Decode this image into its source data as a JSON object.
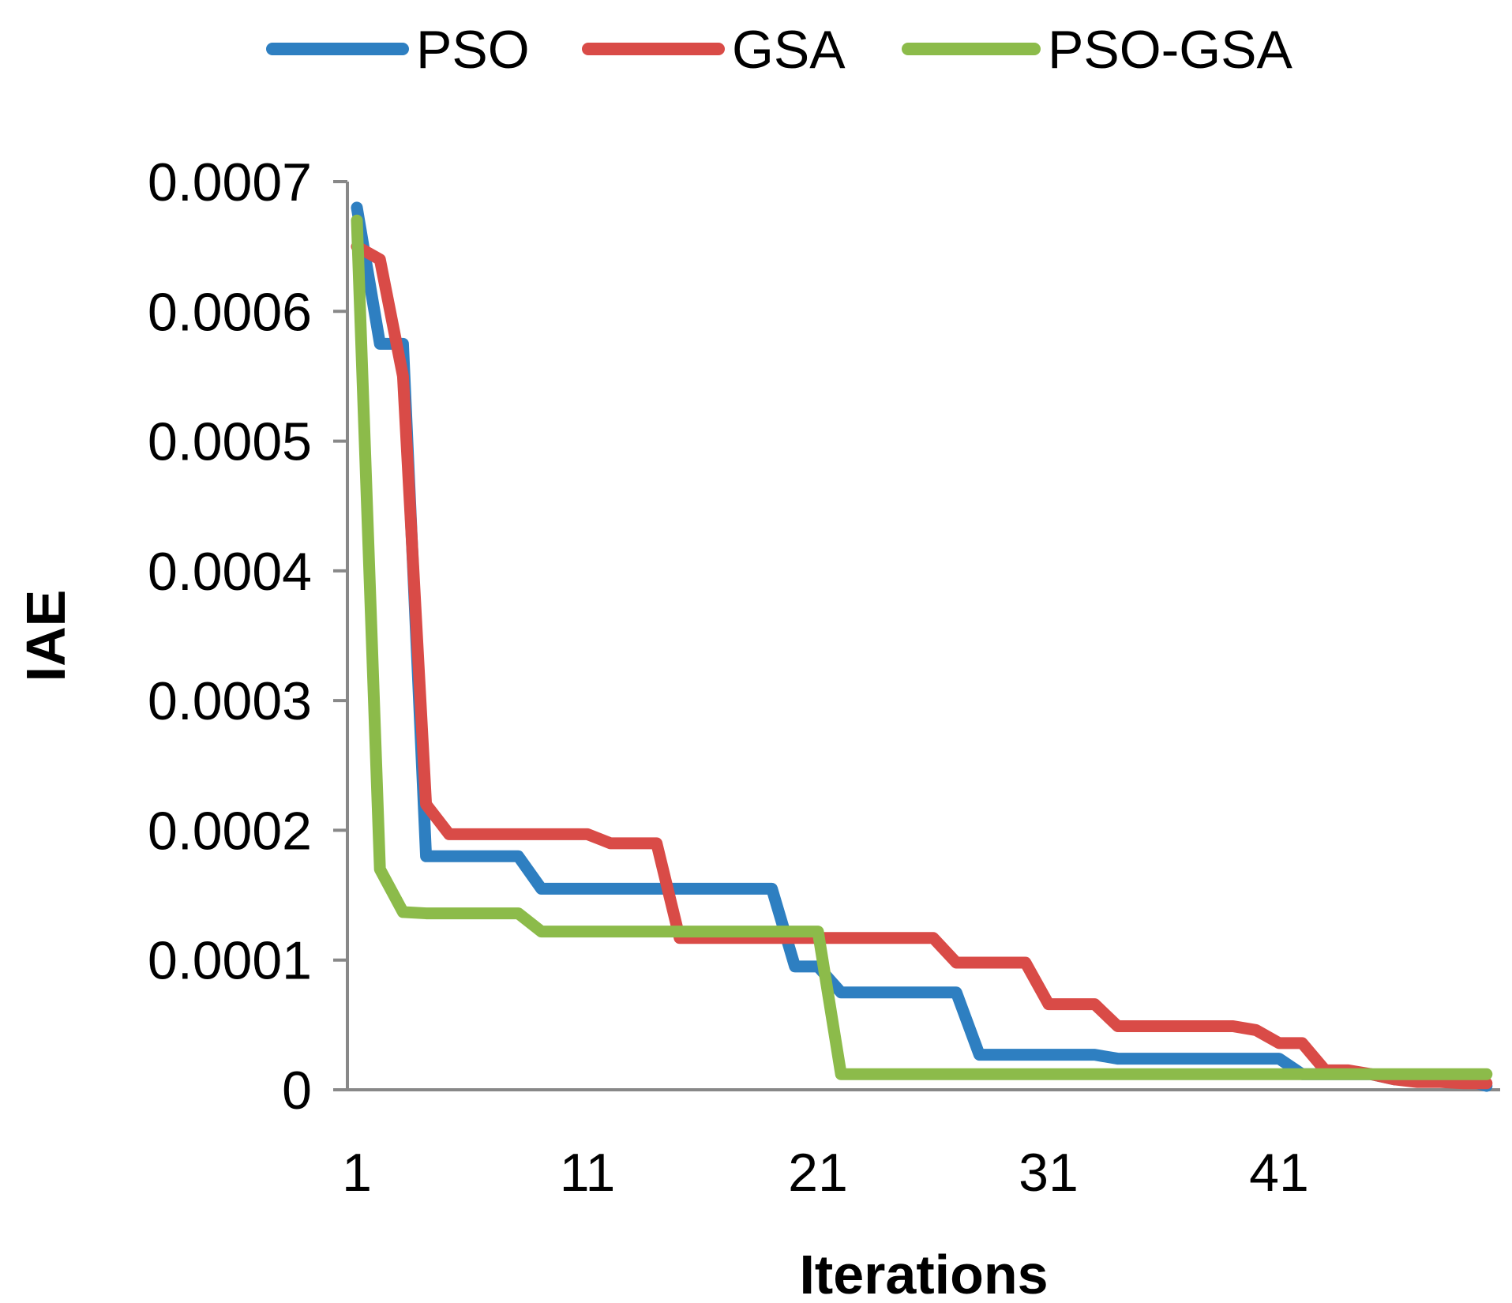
{
  "chart_data": {
    "type": "line",
    "title": "",
    "xlabel": "Iterations",
    "ylabel": "IAE",
    "xlim": [
      1,
      50
    ],
    "ylim": [
      0,
      0.0007
    ],
    "x_ticks": [
      1,
      11,
      21,
      31,
      41
    ],
    "y_ticks": [
      0,
      0.0001,
      0.0002,
      0.0003,
      0.0004,
      0.0005,
      0.0006,
      0.0007
    ],
    "y_tick_labels": [
      "0",
      "0.0001",
      "0.0002",
      "0.0003",
      "0.0004",
      "0.0005",
      "0.0006",
      "0.0007"
    ],
    "grid": false,
    "legend_position": "top",
    "x": [
      1,
      2,
      3,
      4,
      5,
      6,
      7,
      8,
      9,
      10,
      11,
      12,
      13,
      14,
      15,
      16,
      17,
      18,
      19,
      20,
      21,
      22,
      23,
      24,
      25,
      26,
      27,
      28,
      29,
      30,
      31,
      32,
      33,
      34,
      35,
      36,
      37,
      38,
      39,
      40,
      41,
      42,
      43,
      44,
      45,
      46,
      47,
      48,
      49,
      50
    ],
    "series": [
      {
        "name": "PSO",
        "color": "#2e7fc1",
        "values": [
          0.00068,
          0.000575,
          0.000575,
          0.00018,
          0.00018,
          0.00018,
          0.00018,
          0.00018,
          0.000155,
          0.000155,
          0.000155,
          0.000155,
          0.000155,
          0.000155,
          0.000155,
          0.000155,
          0.000155,
          0.000155,
          0.000155,
          9.5e-05,
          9.5e-05,
          7.5e-05,
          7.5e-05,
          7.5e-05,
          7.5e-05,
          7.5e-05,
          7.5e-05,
          2.7e-05,
          2.7e-05,
          2.7e-05,
          2.7e-05,
          2.7e-05,
          2.7e-05,
          2.4e-05,
          2.4e-05,
          2.4e-05,
          2.4e-05,
          2.4e-05,
          2.4e-05,
          2.4e-05,
          2.4e-05,
          1.2e-05,
          1.2e-05,
          1.2e-05,
          1.2e-05,
          8e-06,
          8e-06,
          8e-06,
          8e-06,
          3e-06
        ]
      },
      {
        "name": "GSA",
        "color": "#d94b47",
        "values": [
          0.00065,
          0.00064,
          0.00055,
          0.00022,
          0.000197,
          0.000197,
          0.000197,
          0.000197,
          0.000197,
          0.000197,
          0.000197,
          0.00019,
          0.00019,
          0.00019,
          0.000117,
          0.000117,
          0.000117,
          0.000117,
          0.000117,
          0.000117,
          0.000117,
          0.000117,
          0.000117,
          0.000117,
          0.000117,
          0.000117,
          9.8e-05,
          9.8e-05,
          9.8e-05,
          9.8e-05,
          6.6e-05,
          6.6e-05,
          6.6e-05,
          4.9e-05,
          4.9e-05,
          4.9e-05,
          4.9e-05,
          4.9e-05,
          4.9e-05,
          4.6e-05,
          3.6e-05,
          3.6e-05,
          1.5e-05,
          1.5e-05,
          1.2e-05,
          8e-06,
          6e-06,
          6e-06,
          5e-06,
          5e-06
        ]
      },
      {
        "name": "PSO-GSA",
        "color": "#8cbb4a",
        "values": [
          0.00067,
          0.00017,
          0.000137,
          0.000136,
          0.000136,
          0.000136,
          0.000136,
          0.000136,
          0.000122,
          0.000122,
          0.000122,
          0.000122,
          0.000122,
          0.000122,
          0.000122,
          0.000122,
          0.000122,
          0.000122,
          0.000122,
          0.000122,
          0.000122,
          1.2e-05,
          1.2e-05,
          1.2e-05,
          1.2e-05,
          1.2e-05,
          1.2e-05,
          1.2e-05,
          1.2e-05,
          1.2e-05,
          1.2e-05,
          1.2e-05,
          1.2e-05,
          1.2e-05,
          1.2e-05,
          1.2e-05,
          1.2e-05,
          1.2e-05,
          1.2e-05,
          1.2e-05,
          1.2e-05,
          1.2e-05,
          1.2e-05,
          1.2e-05,
          1.2e-05,
          1.2e-05,
          1.2e-05,
          1.2e-05,
          1.2e-05,
          1.2e-05
        ]
      }
    ]
  }
}
